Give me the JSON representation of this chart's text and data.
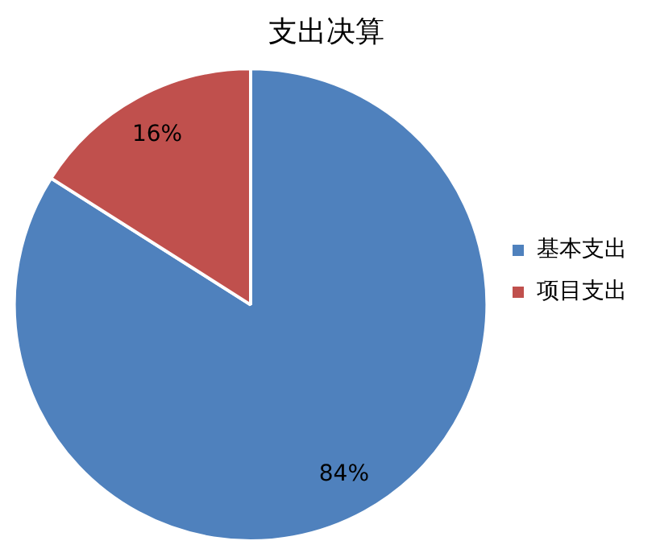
{
  "chart_data": {
    "type": "pie",
    "title": "支出决算",
    "categories": [
      "基本支出",
      "项目支出"
    ],
    "values": [
      84,
      16
    ],
    "colors": [
      "#4f81bd",
      "#c0504d"
    ],
    "value_labels": [
      "84%",
      "16%"
    ],
    "legend": "right"
  }
}
